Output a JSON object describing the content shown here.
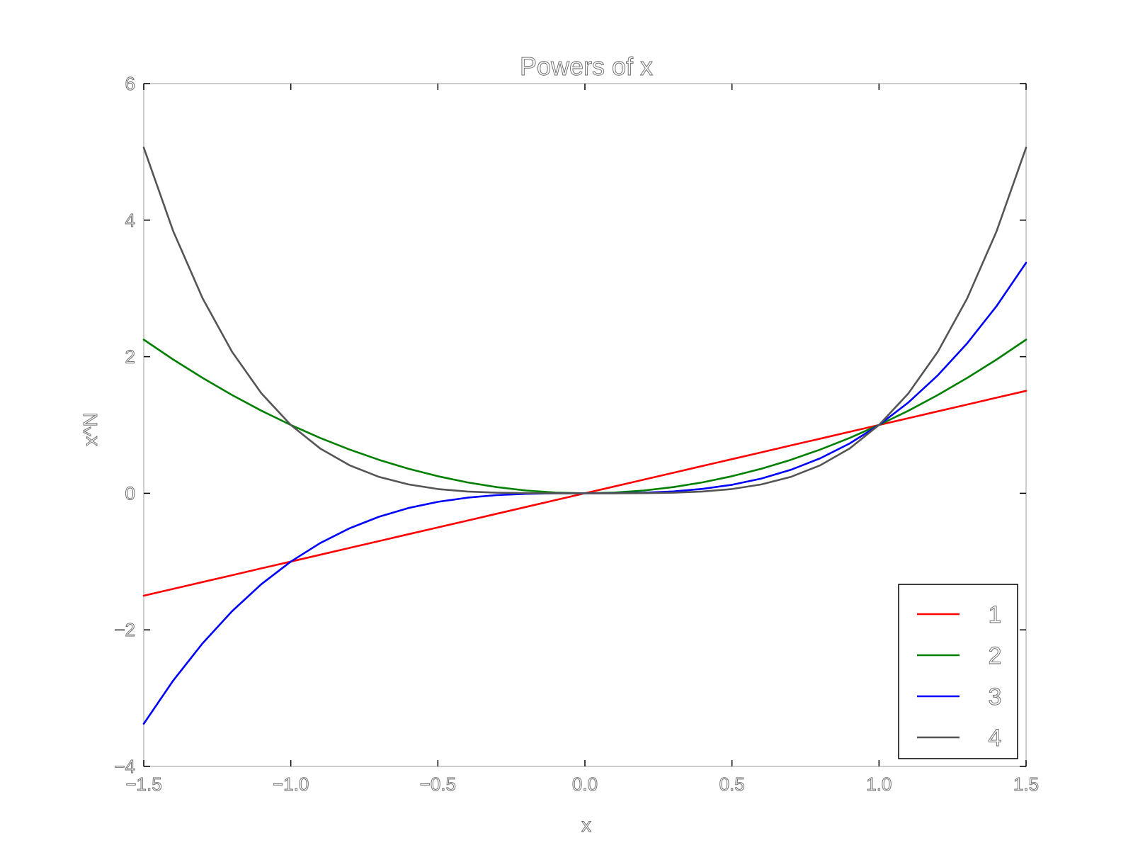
{
  "chart_data": {
    "type": "line",
    "title": "Powers of x",
    "xlabel": "x",
    "ylabel": "x^N",
    "xlim": [
      -1.5,
      1.5
    ],
    "ylim": [
      -4,
      6
    ],
    "xticks": [
      -1.5,
      -1.0,
      -0.5,
      0.0,
      0.5,
      1.0,
      1.5
    ],
    "xtick_labels": [
      "−1.5",
      "−1.0",
      "−0.5",
      "0.0",
      "0.5",
      "1.0",
      "1.5"
    ],
    "yticks": [
      -4,
      -2,
      0,
      2,
      4,
      6
    ],
    "ytick_labels": [
      "−4",
      "−2",
      "0",
      "2",
      "4",
      "6"
    ],
    "grid": false,
    "legend_position": "bottom-right",
    "x": [
      -1.5,
      -1.4,
      -1.3,
      -1.2,
      -1.1,
      -1.0,
      -0.9,
      -0.8,
      -0.7,
      -0.6,
      -0.5,
      -0.4,
      -0.3,
      -0.2,
      -0.1,
      0.0,
      0.1,
      0.2,
      0.3,
      0.4,
      0.5,
      0.6,
      0.7,
      0.8,
      0.9,
      1.0,
      1.1,
      1.2,
      1.3,
      1.4,
      1.5
    ],
    "series": [
      {
        "name": "1",
        "color": "#ff0000",
        "values": [
          -1.5,
          -1.4,
          -1.3,
          -1.2,
          -1.1,
          -1.0,
          -0.9,
          -0.8,
          -0.7,
          -0.6,
          -0.5,
          -0.4,
          -0.3,
          -0.2,
          -0.1,
          0.0,
          0.1,
          0.2,
          0.3,
          0.4,
          0.5,
          0.6,
          0.7,
          0.8,
          0.9,
          1.0,
          1.1,
          1.2,
          1.3,
          1.4,
          1.5
        ]
      },
      {
        "name": "2",
        "color": "#008000",
        "values": [
          2.25,
          1.96,
          1.69,
          1.44,
          1.21,
          1.0,
          0.81,
          0.64,
          0.49,
          0.36,
          0.25,
          0.16,
          0.09,
          0.04,
          0.01,
          0.0,
          0.01,
          0.04,
          0.09,
          0.16,
          0.25,
          0.36,
          0.49,
          0.64,
          0.81,
          1.0,
          1.21,
          1.44,
          1.69,
          1.96,
          2.25
        ]
      },
      {
        "name": "3",
        "color": "#0000ff",
        "values": [
          -3.375,
          -2.744,
          -2.197,
          -1.728,
          -1.331,
          -1.0,
          -0.729,
          -0.512,
          -0.343,
          -0.216,
          -0.125,
          -0.064,
          -0.027,
          -0.008,
          -0.001,
          0.0,
          0.001,
          0.008,
          0.027,
          0.064,
          0.125,
          0.216,
          0.343,
          0.512,
          0.729,
          1.0,
          1.331,
          1.728,
          2.197,
          2.744,
          3.375
        ]
      },
      {
        "name": "4",
        "color": "#555555",
        "values": [
          5.0625,
          3.8416,
          2.8561,
          2.0736,
          1.4641,
          1.0,
          0.6561,
          0.4096,
          0.2401,
          0.1296,
          0.0625,
          0.0256,
          0.0081,
          0.0016,
          0.0001,
          0.0,
          0.0001,
          0.0016,
          0.0081,
          0.0256,
          0.0625,
          0.1296,
          0.2401,
          0.4096,
          0.6561,
          1.0,
          1.4641,
          2.0736,
          2.8561,
          3.8416,
          5.0625
        ]
      }
    ]
  }
}
